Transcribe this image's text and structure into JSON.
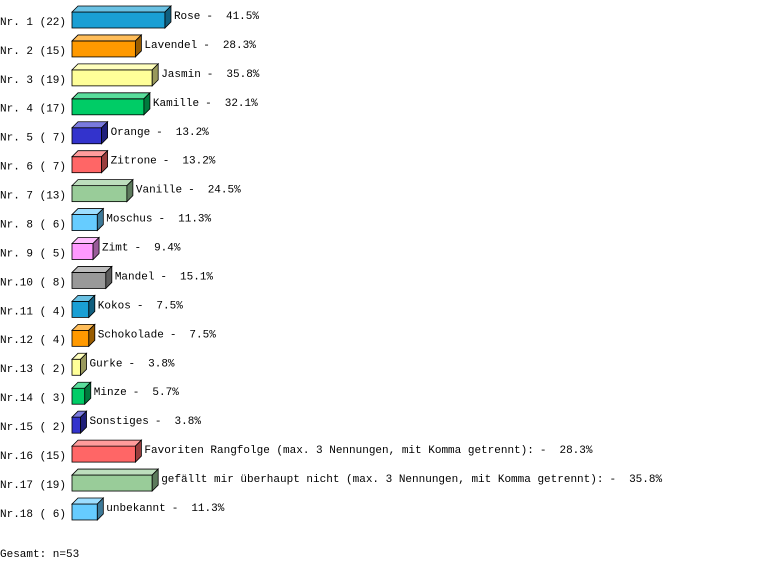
{
  "chart_data": {
    "type": "bar",
    "orientation": "horizontal",
    "rank_labels": [
      "Nr. 1 (22)",
      "Nr. 2 (15)",
      "Nr. 3 (19)",
      "Nr. 4 (17)",
      "Nr. 5 ( 7)",
      "Nr. 6 ( 7)",
      "Nr. 7 (13)",
      "Nr. 8 ( 6)",
      "Nr. 9 ( 5)",
      "Nr.10 ( 8)",
      "Nr.11 ( 4)",
      "Nr.12 ( 4)",
      "Nr.13 ( 2)",
      "Nr.14 ( 3)",
      "Nr.15 ( 2)",
      "Nr.16 (15)",
      "Nr.17 (19)",
      "Nr.18 ( 6)"
    ],
    "categories": [
      "Rose",
      "Lavendel",
      "Jasmin",
      "Kamille",
      "Orange",
      "Zitrone",
      "Vanille",
      "Moschus",
      "Zimt",
      "Mandel",
      "Kokos",
      "Schokolade",
      "Gurke",
      "Minze",
      "Sonstiges",
      "Favoriten Rangfolge (max. 3 Nennungen, mit Komma getrennt):",
      "gefällt mir überhaupt nicht (max. 3 Nennungen, mit Komma getrennt):",
      "unbekannt"
    ],
    "separator": "-",
    "values": [
      41.5,
      28.3,
      35.8,
      32.1,
      13.2,
      13.2,
      24.5,
      11.3,
      9.4,
      15.1,
      7.5,
      7.5,
      3.8,
      5.7,
      3.8,
      28.3,
      35.8,
      11.3
    ],
    "value_labels": [
      "41.5%",
      "28.3%",
      "35.8%",
      "32.1%",
      "13.2%",
      "13.2%",
      "24.5%",
      "11.3%",
      "9.4%",
      "15.1%",
      "7.5%",
      "7.5%",
      "3.8%",
      "5.7%",
      "3.8%",
      "28.3%",
      "35.8%",
      "11.3%"
    ],
    "colors": [
      "#1a9fd4",
      "#ff9900",
      "#ffff99",
      "#00cc66",
      "#3333cc",
      "#ff6666",
      "#99cc99",
      "#66ccff",
      "#ff99ff",
      "#999999",
      "#1a9fd4",
      "#ff9900",
      "#ffff99",
      "#00cc66",
      "#3333cc",
      "#ff6666",
      "#99cc99",
      "#66ccff"
    ],
    "footer": "Gesamt: n=53"
  }
}
